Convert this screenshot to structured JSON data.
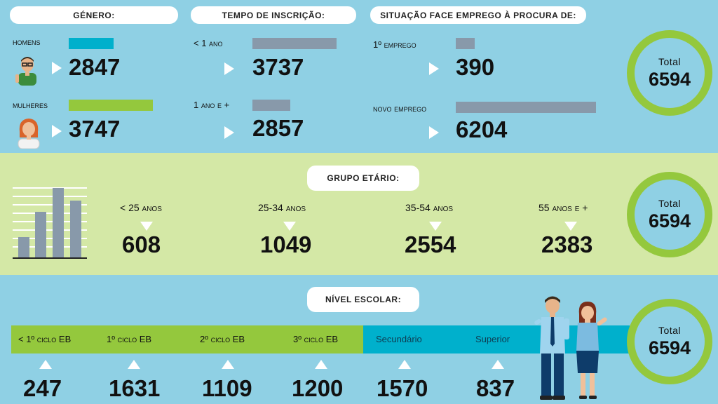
{
  "colors": {
    "top_bg": "#8fd0e4",
    "mid_bg": "#d4e8a6",
    "cyan_bar": "#00b0cc",
    "green_bar": "#94c83d",
    "gray_bar": "#8899aa",
    "ring": "#94c83d"
  },
  "genero": {
    "title": "Género:",
    "homens": {
      "label": "Homens",
      "value": "2847",
      "share": 0.432,
      "icon": "man-avatar-icon"
    },
    "mulheres": {
      "label": "Mulheres",
      "value": "3747",
      "share": 0.568,
      "icon": "woman-avatar-icon"
    }
  },
  "tempo": {
    "title": "Tempo de inscrição:",
    "menos_1": {
      "label": "< 1 ano",
      "value": "3737",
      "share": 0.567
    },
    "mais_1": {
      "label": "1 ano e +",
      "value": "2857",
      "share": 0.433
    }
  },
  "situacao": {
    "title": "Situação face emprego à procura de:",
    "primeiro": {
      "label": "1º emprego",
      "value": "390",
      "share": 0.059
    },
    "novo": {
      "label": "Novo emprego",
      "value": "6204",
      "share": 0.941
    }
  },
  "grupo": {
    "title": "Grupo etário:",
    "icon": "bar-chart-icon",
    "items": [
      {
        "label": "< 25 anos",
        "value": "608"
      },
      {
        "label": "25-34 anos",
        "value": "1049"
      },
      {
        "label": "35-54 anos",
        "value": "2554"
      },
      {
        "label": "55 anos e +",
        "value": "2383"
      }
    ]
  },
  "nivel": {
    "title": "Nível escolar:",
    "illustration": "man-and-woman-illustration",
    "items": [
      {
        "label": "< 1º ciclo EB",
        "value": "247"
      },
      {
        "label": "1º ciclo EB",
        "value": "1631"
      },
      {
        "label": "2º ciclo EB",
        "value": "1109"
      },
      {
        "label": "3º ciclo EB",
        "value": "1200"
      },
      {
        "label": "Secundário",
        "value": "1570"
      },
      {
        "label": "Superior",
        "value": "837"
      }
    ]
  },
  "totals": {
    "label": "Total",
    "value": "6594"
  }
}
